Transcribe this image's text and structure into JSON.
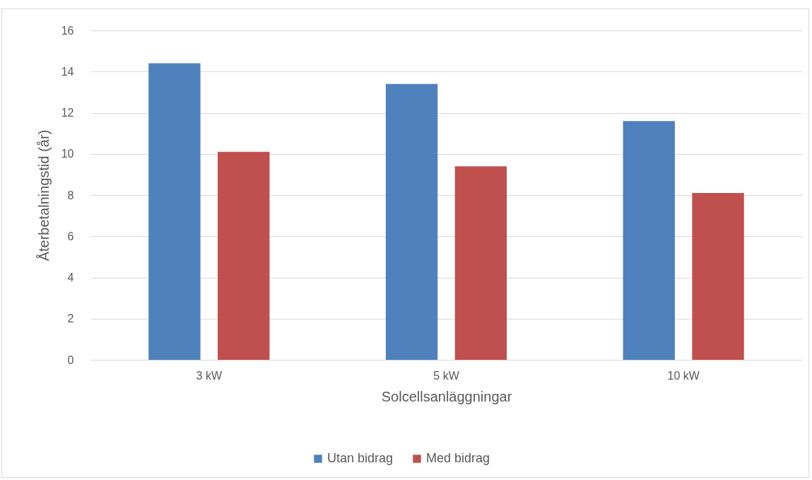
{
  "chart_data": {
    "type": "bar",
    "xlabel": "Solcellsanläggningar",
    "ylabel": "Återbetalningstid (år)",
    "categories": [
      "3 kW",
      "5 kW",
      "10 kW"
    ],
    "series": [
      {
        "name": "Utan bidrag",
        "color": "#4f81bd",
        "values": [
          14.4,
          13.4,
          11.6
        ]
      },
      {
        "name": "Med bidrag",
        "color": "#c0504d",
        "values": [
          10.1,
          9.4,
          8.1
        ]
      }
    ],
    "ylim": [
      0,
      16
    ],
    "yticks": [
      0,
      2,
      4,
      6,
      8,
      10,
      12,
      14,
      16
    ],
    "grid": "y",
    "legend": "bottom"
  }
}
